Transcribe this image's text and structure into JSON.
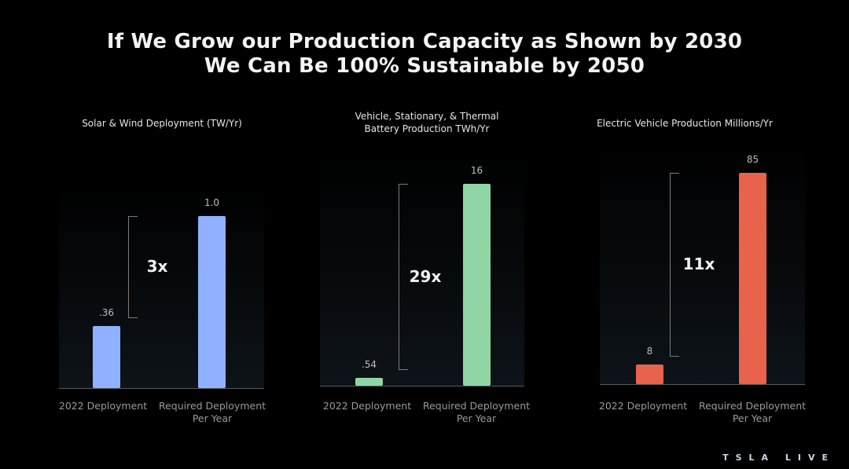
{
  "title_line1": "If We Grow our Production Capacity as Shown by 2030",
  "title_line2": "We Can Be 100% Sustainable by 2050",
  "logo_text": "TSLA LIVE",
  "chart_data": [
    {
      "type": "bar",
      "title": "Solar & Wind Deployment (TW/Yr)",
      "categories": [
        "2022 Deployment",
        "Required Deployment\nPer Year"
      ],
      "values": [
        0.36,
        1.0
      ],
      "value_labels": [
        ".36",
        "1.0"
      ],
      "multiplier_label": "3x",
      "color": "#8fb1ff",
      "ylim": [
        0,
        1.0
      ]
    },
    {
      "type": "bar",
      "title": "Vehicle, Stationary, & Thermal\nBattery Production TWh/Yr",
      "categories": [
        "2022 Deployment",
        "Required Deployment\nPer Year"
      ],
      "values": [
        0.54,
        16
      ],
      "value_labels": [
        ".54",
        "16"
      ],
      "multiplier_label": "29x",
      "color": "#8fd6a4",
      "ylim": [
        0,
        16
      ]
    },
    {
      "type": "bar",
      "title": "Electric Vehicle Production Millions/Yr",
      "categories": [
        "2022 Deployment",
        "Required Deployment\nPer Year"
      ],
      "values": [
        8,
        85
      ],
      "value_labels": [
        "8",
        "85"
      ],
      "multiplier_label": "11x",
      "color": "#e8624c",
      "ylim": [
        0,
        85
      ]
    }
  ]
}
